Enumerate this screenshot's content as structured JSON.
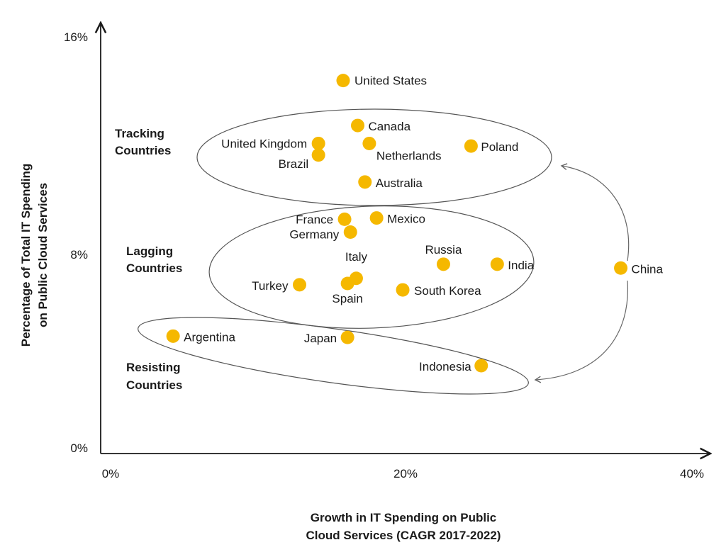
{
  "chart_data": {
    "type": "scatter",
    "xlabel": [
      "Growth in IT Spending on Public",
      "Cloud Services (CAGR 2017-2022)"
    ],
    "ylabel": [
      "Percentage of Total IT Spending",
      "on Public Cloud Services"
    ],
    "x_ticks": [
      "0%",
      "20%",
      "40%"
    ],
    "y_ticks": [
      "0%",
      "8%",
      "16%"
    ],
    "xlim": [
      0,
      40
    ],
    "ylim": [
      0,
      16
    ],
    "groups": [
      {
        "name": "tracking",
        "label": [
          "Tracking",
          "Countries"
        ]
      },
      {
        "name": "lagging",
        "label": [
          "Lagging",
          "Countries"
        ]
      },
      {
        "name": "resisting",
        "label": [
          "Resisting",
          "Countries"
        ]
      }
    ],
    "points": [
      {
        "label": "United States",
        "x": 16.0,
        "y": 14.3,
        "group": "none"
      },
      {
        "label": "Canada",
        "x": 17.0,
        "y": 12.55,
        "group": "tracking"
      },
      {
        "label": "United Kingdom",
        "x": 14.3,
        "y": 11.85,
        "group": "tracking"
      },
      {
        "label": "Netherlands",
        "x": 17.8,
        "y": 11.85,
        "group": "tracking"
      },
      {
        "label": "Poland",
        "x": 24.8,
        "y": 11.75,
        "group": "tracking"
      },
      {
        "label": "Brazil",
        "x": 14.3,
        "y": 11.4,
        "group": "tracking"
      },
      {
        "label": "Australia",
        "x": 17.5,
        "y": 10.35,
        "group": "tracking"
      },
      {
        "label": "France",
        "x": 16.1,
        "y": 8.9,
        "group": "lagging"
      },
      {
        "label": "Mexico",
        "x": 18.3,
        "y": 8.95,
        "group": "lagging"
      },
      {
        "label": "Germany",
        "x": 16.5,
        "y": 8.4,
        "group": "lagging"
      },
      {
        "label": "Russia",
        "x": 22.9,
        "y": 7.15,
        "group": "lagging"
      },
      {
        "label": "India",
        "x": 26.6,
        "y": 7.15,
        "group": "lagging"
      },
      {
        "label": "Italy",
        "x": 16.9,
        "y": 6.6,
        "group": "lagging"
      },
      {
        "label": "Spain",
        "x": 16.3,
        "y": 6.4,
        "group": "lagging"
      },
      {
        "label": "Turkey",
        "x": 13.0,
        "y": 6.35,
        "group": "lagging"
      },
      {
        "label": "South Korea",
        "x": 20.1,
        "y": 6.15,
        "group": "lagging"
      },
      {
        "label": "China",
        "x": 35.1,
        "y": 7.0,
        "group": "none"
      },
      {
        "label": "Argentina",
        "x": 4.3,
        "y": 4.35,
        "group": "resisting"
      },
      {
        "label": "Japan",
        "x": 16.3,
        "y": 4.3,
        "group": "resisting"
      },
      {
        "label": "Indonesia",
        "x": 25.5,
        "y": 3.2,
        "group": "resisting"
      }
    ],
    "annotations": [
      {
        "type": "arrow",
        "from": "China",
        "to": "tracking"
      },
      {
        "type": "arrow",
        "from": "China",
        "to": "resisting"
      }
    ]
  }
}
